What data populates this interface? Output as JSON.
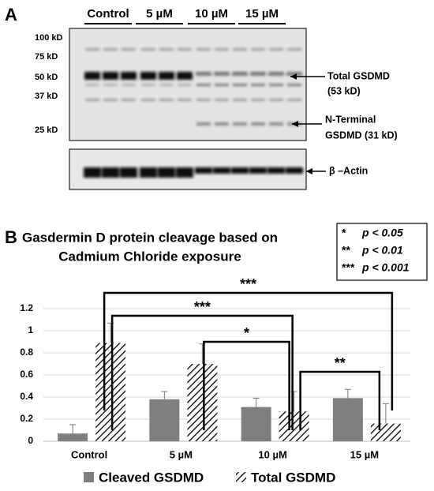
{
  "panel_a": {
    "label": "A",
    "groups": [
      "Control",
      "5 µM",
      "10 µM",
      "15 µM"
    ],
    "markers": [
      "100 kD",
      "75 kD",
      "50 kD",
      "37 kD",
      "25 kD"
    ],
    "band_labels": [
      "Total GSDMD",
      "(53 kD)",
      "N-Terminal",
      "GSDMD (31 kD)",
      "β –Actin"
    ]
  },
  "panel_b": {
    "label": "B",
    "significance_key": [
      "*",
      "p < 0.05",
      "**",
      "p < 0.01",
      "***",
      "p < 0.001"
    ]
  },
  "chart_data": {
    "type": "bar",
    "title": [
      "Gasdermin D protein cleavage based on",
      "Cadmium Chloride exposure"
    ],
    "categories": [
      "Control",
      "5 µM",
      "10 µM",
      "15 µM"
    ],
    "series": [
      {
        "name": "Cleaved GSDMD",
        "color": "#7f7f7f",
        "pattern": "solid",
        "values": [
          0.07,
          0.38,
          0.31,
          0.39
        ],
        "errors": [
          0.08,
          0.07,
          0.08,
          0.08
        ]
      },
      {
        "name": "Total GSDMD",
        "color": "#000000",
        "pattern": "hatch",
        "values": [
          0.89,
          0.7,
          0.27,
          0.16
        ],
        "errors": [
          0.18,
          0.18,
          0.18,
          0.18
        ]
      }
    ],
    "ylim": [
      0,
      1.3
    ],
    "yticks": [
      0,
      0.2,
      0.4,
      0.6,
      0.8,
      1,
      1.2
    ],
    "grid": true,
    "legend": "bottom",
    "annotations": [
      "***",
      "***",
      "*",
      "**"
    ]
  }
}
